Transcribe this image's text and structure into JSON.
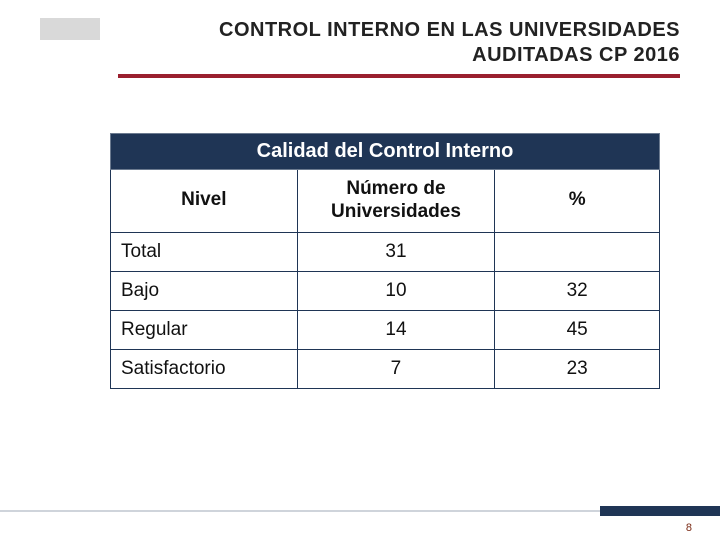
{
  "header": {
    "title_line1": "CONTROL INTERNO EN LAS UNIVERSIDADES",
    "title_line2": "AUDITADAS CP 2016",
    "accent_color": "#9a1f2e",
    "block_color": "#d9d9d9"
  },
  "table": {
    "title": "Calidad del Control Interno",
    "title_bg": "#1f3555",
    "title_fg": "#ffffff",
    "border_color": "#1f3555",
    "columns": {
      "nivel": "Nivel",
      "numero": "Número de Universidades",
      "pct": "%"
    },
    "rows": [
      {
        "nivel": "Total",
        "numero": "31",
        "pct": ""
      },
      {
        "nivel": "Bajo",
        "numero": "10",
        "pct": "32"
      },
      {
        "nivel": "Regular",
        "numero": "14",
        "pct": "45"
      },
      {
        "nivel": "Satisfactorio",
        "numero": "7",
        "pct": "23"
      }
    ]
  },
  "footer": {
    "line_color": "#cfd4db",
    "accent_color": "#1f3555",
    "page_number": "8"
  }
}
